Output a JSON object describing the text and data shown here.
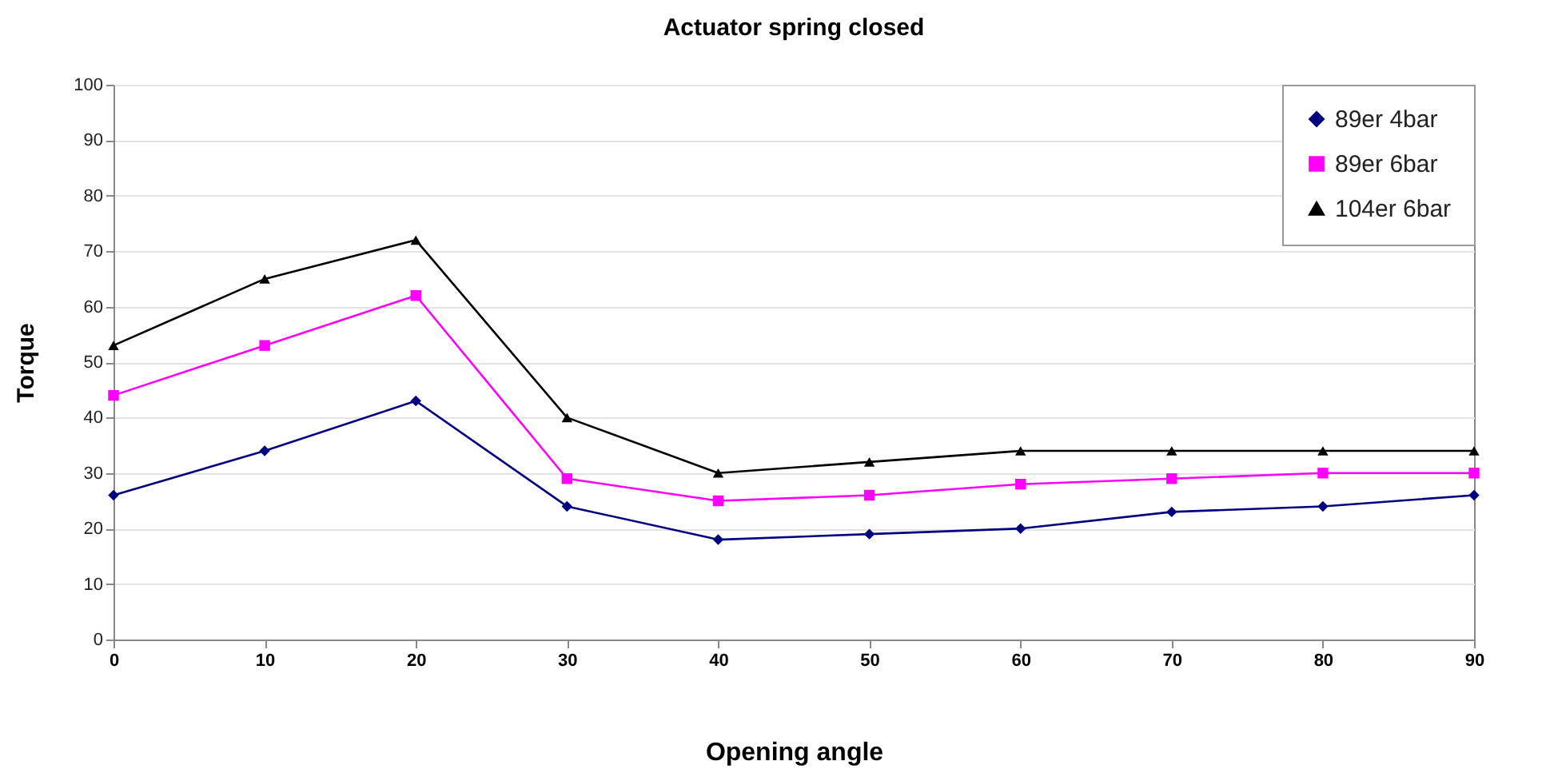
{
  "chart_data": {
    "type": "line",
    "title": "Actuator spring closed",
    "xlabel": "Opening angle",
    "ylabel": "Torque",
    "x": [
      0,
      10,
      20,
      30,
      40,
      50,
      60,
      70,
      80,
      90
    ],
    "series": [
      {
        "name": "89er 4bar",
        "color": "#000080",
        "marker": "diamond",
        "values": [
          26,
          34,
          43,
          24,
          18,
          19,
          20,
          23,
          24,
          26
        ]
      },
      {
        "name": "89er 6bar",
        "color": "#ff00ff",
        "marker": "square",
        "values": [
          44,
          53,
          62,
          29,
          25,
          26,
          28,
          29,
          30,
          30
        ]
      },
      {
        "name": "104er 6bar",
        "color": "#000000",
        "marker": "triangle",
        "values": [
          53,
          65,
          72,
          40,
          30,
          32,
          34,
          34,
          34,
          34
        ]
      }
    ],
    "xlim": [
      0,
      90
    ],
    "xticks": [
      0,
      10,
      20,
      30,
      40,
      50,
      60,
      70,
      80,
      90
    ],
    "ylim": [
      0,
      100
    ],
    "yticks": [
      0,
      10,
      20,
      30,
      40,
      50,
      60,
      70,
      80,
      90,
      100
    ],
    "grid": "y",
    "legend": "top right",
    "line_style": "solid"
  }
}
